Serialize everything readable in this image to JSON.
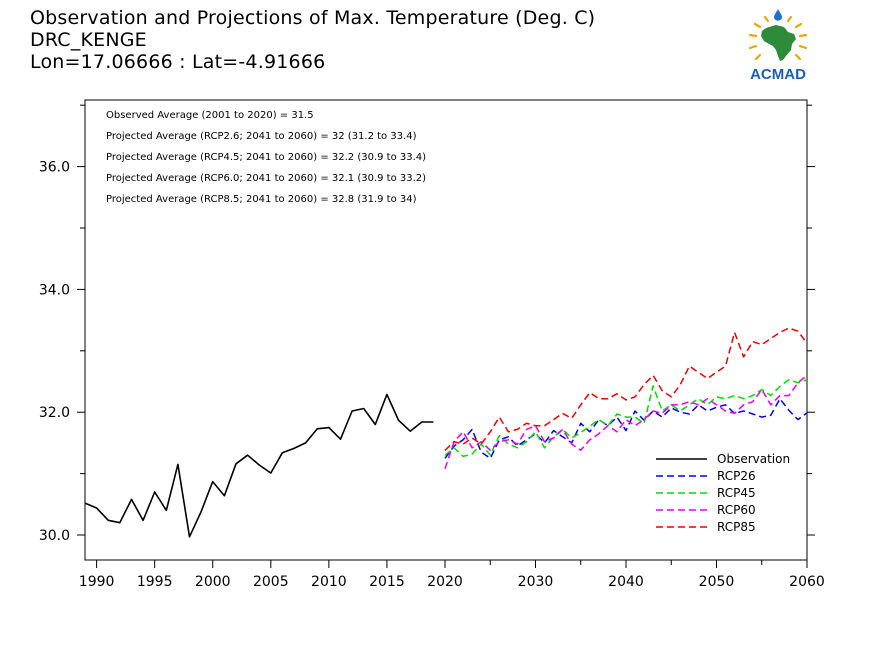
{
  "header": {
    "title_line1": "Observation and Projections of Max. Temperature (Deg. C)",
    "title_line2": "DRC_KENGE",
    "title_line3": "Lon=17.06666 : Lat=-4.91666"
  },
  "logo": {
    "label": "ACMAD",
    "icon": "africa-map-logo-icon",
    "colors": {
      "africa": "#2e8b3a",
      "rays": "#f0a500",
      "drop": "#1e6fd0",
      "text": "#1e5fb0"
    }
  },
  "chart_data": {
    "type": "line",
    "xlim": [
      1989,
      2060
    ],
    "ylim": [
      29.6,
      37.0
    ],
    "x_ticks": [
      1990,
      1995,
      2000,
      2005,
      2010,
      2015,
      2020,
      2030,
      2040,
      2050,
      2060
    ],
    "y_ticks": [
      30.0,
      32.0,
      34.0,
      36.0
    ],
    "y_tick_labels": [
      "30.0",
      "32.0",
      "34.0",
      "36.0"
    ],
    "annotations": [
      "Observed Average (2001 to 2020) = 31.5",
      "Projected Average (RCP2.6; 2041 to 2060) = 32 (31.2 to 33.4)",
      "Projected Average (RCP4.5; 2041 to 2060) = 32.2 (30.9 to 33.4)",
      "Projected Average (RCP6.0; 2041 to 2060) = 32.1 (30.9 to 33.2)",
      "Projected Average (RCP8.5; 2041 to 2060) = 32.8 (31.9 to 34)"
    ],
    "legend_position": "bottom-right",
    "series": [
      {
        "name": "Observation",
        "color": "#000000",
        "dash": "solid",
        "x": [
          1989,
          1990,
          1991,
          1992,
          1993,
          1994,
          1995,
          1996,
          1997,
          1998,
          1999,
          2000,
          2001,
          2002,
          2003,
          2004,
          2005,
          2006,
          2007,
          2008,
          2009,
          2010,
          2011,
          2012,
          2013,
          2014,
          2015,
          2016,
          2017,
          2018,
          2019
        ],
        "y": [
          30.52,
          30.44,
          30.24,
          30.2,
          30.58,
          30.24,
          30.7,
          30.4,
          31.15,
          29.97,
          30.38,
          30.87,
          30.64,
          31.16,
          31.3,
          31.14,
          31.01,
          31.34,
          31.41,
          31.5,
          31.73,
          31.75,
          31.56,
          32.02,
          32.06,
          31.8,
          32.29,
          31.87,
          31.69,
          31.84,
          31.84
        ]
      },
      {
        "name": "RCP26",
        "color": "#0000ee",
        "dash": "dashed",
        "x": [
          2020,
          2021,
          2022,
          2023,
          2024,
          2025,
          2026,
          2027,
          2028,
          2029,
          2030,
          2031,
          2032,
          2033,
          2034,
          2035,
          2036,
          2037,
          2038,
          2039,
          2040,
          2041,
          2042,
          2043,
          2044,
          2045,
          2046,
          2047,
          2048,
          2049,
          2050,
          2051,
          2052,
          2053,
          2054,
          2055,
          2056,
          2057,
          2058,
          2059,
          2060
        ],
        "y": [
          31.25,
          31.45,
          31.55,
          31.72,
          31.35,
          31.25,
          31.55,
          31.6,
          31.45,
          31.55,
          31.65,
          31.5,
          31.7,
          31.6,
          31.5,
          31.82,
          31.68,
          31.88,
          31.78,
          31.92,
          31.7,
          32.02,
          31.87,
          32.02,
          31.92,
          32.07,
          32.0,
          31.97,
          32.12,
          32.02,
          32.08,
          32.12,
          31.98,
          32.02,
          31.97,
          31.92,
          31.95,
          32.22,
          32.03,
          31.88,
          31.99
        ]
      },
      {
        "name": "RCP45",
        "color": "#00dd00",
        "dash": "dashed",
        "x": [
          2020,
          2021,
          2022,
          2023,
          2024,
          2025,
          2026,
          2027,
          2028,
          2029,
          2030,
          2031,
          2032,
          2033,
          2034,
          2035,
          2036,
          2037,
          2038,
          2039,
          2040,
          2041,
          2042,
          2043,
          2044,
          2045,
          2046,
          2047,
          2048,
          2049,
          2050,
          2051,
          2052,
          2053,
          2054,
          2055,
          2056,
          2057,
          2058,
          2059,
          2060
        ],
        "y": [
          31.3,
          31.42,
          31.28,
          31.32,
          31.48,
          31.3,
          31.62,
          31.48,
          31.42,
          31.52,
          31.68,
          31.42,
          31.6,
          31.72,
          31.58,
          31.67,
          31.77,
          31.88,
          31.78,
          31.97,
          31.92,
          31.92,
          31.82,
          32.43,
          32.02,
          32.12,
          32.02,
          32.12,
          32.22,
          32.12,
          32.25,
          32.22,
          32.27,
          32.22,
          32.27,
          32.37,
          32.27,
          32.42,
          32.53,
          32.48,
          32.53
        ]
      },
      {
        "name": "RCP60",
        "color": "#ee00ee",
        "dash": "dashed",
        "x": [
          2020,
          2021,
          2022,
          2023,
          2024,
          2025,
          2026,
          2027,
          2028,
          2029,
          2030,
          2031,
          2032,
          2033,
          2034,
          2035,
          2036,
          2037,
          2038,
          2039,
          2040,
          2041,
          2042,
          2043,
          2044,
          2045,
          2046,
          2047,
          2048,
          2049,
          2050,
          2051,
          2052,
          2053,
          2054,
          2055,
          2056,
          2057,
          2058,
          2059,
          2060
        ],
        "y": [
          31.08,
          31.52,
          31.68,
          31.42,
          31.52,
          31.38,
          31.52,
          31.55,
          31.48,
          31.72,
          31.78,
          31.52,
          31.58,
          31.72,
          31.48,
          31.38,
          31.55,
          31.65,
          31.78,
          31.68,
          31.88,
          31.78,
          31.88,
          32.02,
          31.98,
          32.12,
          32.12,
          32.17,
          32.12,
          32.22,
          32.12,
          32.02,
          31.98,
          32.12,
          32.17,
          32.37,
          32.12,
          32.27,
          32.27,
          32.48,
          32.6
        ]
      },
      {
        "name": "RCP85",
        "color": "#ee0000",
        "dash": "dashed",
        "x": [
          2020,
          2021,
          2022,
          2023,
          2024,
          2025,
          2026,
          2027,
          2028,
          2029,
          2030,
          2031,
          2032,
          2033,
          2034,
          2035,
          2036,
          2037,
          2038,
          2039,
          2040,
          2041,
          2042,
          2043,
          2044,
          2045,
          2046,
          2047,
          2048,
          2049,
          2050,
          2051,
          2052,
          2053,
          2054,
          2055,
          2056,
          2057,
          2058,
          2059,
          2060
        ],
        "y": [
          31.38,
          31.52,
          31.48,
          31.58,
          31.48,
          31.68,
          31.92,
          31.68,
          31.72,
          31.82,
          31.78,
          31.78,
          31.88,
          31.98,
          31.9,
          32.12,
          32.32,
          32.22,
          32.22,
          32.3,
          32.2,
          32.25,
          32.45,
          32.6,
          32.35,
          32.25,
          32.45,
          32.75,
          32.65,
          32.55,
          32.65,
          32.75,
          33.3,
          32.9,
          33.15,
          33.1,
          33.2,
          33.3,
          33.37,
          33.32,
          33.12
        ]
      }
    ]
  }
}
